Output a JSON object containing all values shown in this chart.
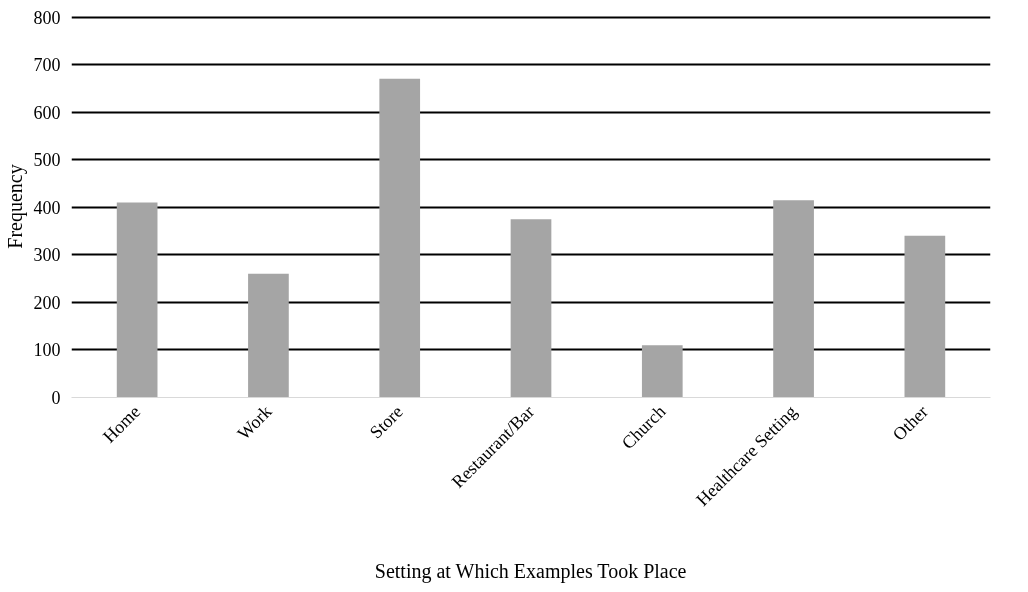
{
  "chart_data": {
    "type": "bar",
    "xlabel": "Setting at Which Examples Took Place",
    "ylabel": "Frequency",
    "categories": [
      "Home",
      "Work",
      "Store",
      "Restaurant/Bar",
      "Church",
      "Healthcare Setting",
      "Other"
    ],
    "values": [
      410,
      260,
      670,
      375,
      110,
      415,
      340
    ],
    "color": "#a5a5a5",
    "ylim": [
      0,
      800
    ],
    "yticks": [
      0,
      100,
      200,
      300,
      400,
      500,
      600,
      700,
      800
    ],
    "grid": "y"
  }
}
